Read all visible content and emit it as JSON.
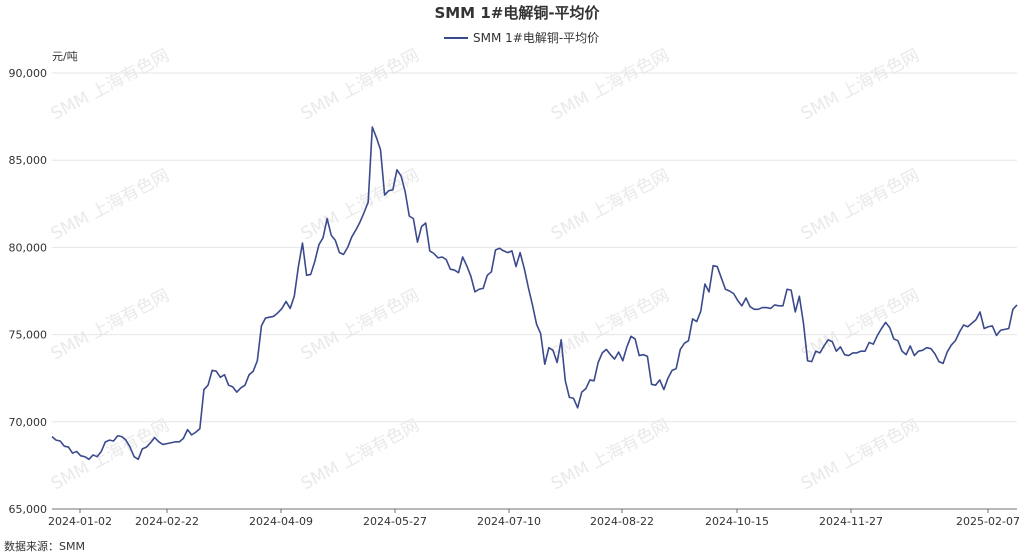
{
  "chart_data": {
    "type": "line",
    "title": "SMM 1#电解铜-平均价",
    "ylabel": "元/吨",
    "ylim": [
      65000,
      90000
    ],
    "y_ticks": [
      65000,
      70000,
      75000,
      80000,
      85000,
      90000
    ],
    "y_tick_labels": [
      "65,000",
      "70,000",
      "75,000",
      "80,000",
      "85,000",
      "90,000"
    ],
    "x_ticks": [
      "2024-01-02",
      "2024-02-22",
      "2024-04-09",
      "2024-05-27",
      "2024-07-10",
      "2024-08-22",
      "2024-10-15",
      "2024-11-27",
      "2025-02-07"
    ],
    "legend_position": "top-center",
    "grid": true,
    "watermark": "SMM 上海有色网",
    "color": "#3b4a8c",
    "series": [
      {
        "name": "SMM 1#电解铜-平均价",
        "values": [
          69150,
          68950,
          68900,
          68600,
          68550,
          68200,
          68300,
          68050,
          68000,
          67850,
          68100,
          68000,
          68300,
          68850,
          68950,
          68900,
          69200,
          69150,
          68950,
          68550,
          68000,
          67850,
          68450,
          68550,
          68800,
          69100,
          68850,
          68700,
          68750,
          68800,
          68850,
          68850,
          69050,
          69550,
          69250,
          69400,
          69600,
          71850,
          72100,
          72950,
          72900,
          72550,
          72700,
          72100,
          72000,
          71700,
          71950,
          72100,
          72700,
          72900,
          73500,
          75500,
          75950,
          76000,
          76050,
          76250,
          76500,
          76900,
          76500,
          77200,
          78900,
          80250,
          78400,
          78450,
          79200,
          80150,
          80550,
          81650,
          80700,
          80400,
          79700,
          79600,
          80000,
          80600,
          81000,
          81450,
          82000,
          82600,
          86900,
          86300,
          85600,
          83000,
          83250,
          83300,
          84450,
          84100,
          83200,
          81800,
          81650,
          80300,
          81200,
          81400,
          79800,
          79650,
          79400,
          79450,
          79300,
          78750,
          78700,
          78550,
          79450,
          78950,
          78350,
          77450,
          77600,
          77650,
          78400,
          78600,
          79850,
          79950,
          79800,
          79700,
          79800,
          78900,
          79700,
          78800,
          77700,
          76700,
          75600,
          75050,
          73300,
          74250,
          74100,
          73400,
          74700,
          72350,
          71400,
          71350,
          70800,
          71700,
          71900,
          72400,
          72350,
          73400,
          73950,
          74150,
          73850,
          73600,
          74000,
          73500,
          74300,
          74900,
          74750,
          73800,
          73850,
          73750,
          72150,
          72100,
          72400,
          71850,
          72500,
          72950,
          73050,
          74150,
          74500,
          74650,
          75900,
          75750,
          76350,
          77900,
          77450,
          78950,
          78900,
          78250,
          77600,
          77500,
          77350,
          76950,
          76650,
          77100,
          76600,
          76450,
          76450,
          76550,
          76550,
          76500,
          76700,
          76650,
          76650,
          77600,
          77550,
          76300,
          77200,
          75650,
          73500,
          73450,
          74050,
          73950,
          74350,
          74700,
          74600,
          74050,
          74300,
          73850,
          73800,
          73950,
          73950,
          74050,
          74050,
          74550,
          74450,
          74950,
          75350,
          75700,
          75400,
          74750,
          74650,
          74050,
          73850,
          74350,
          73800,
          74050,
          74100,
          74250,
          74200,
          73900,
          73450,
          73350,
          74000,
          74400,
          74650,
          75150,
          75550,
          75450,
          75650,
          75850,
          76300,
          75350,
          75450,
          75500,
          74950,
          75250,
          75300,
          75350,
          76450,
          76700
        ]
      }
    ]
  },
  "footer": {
    "source": "数据来源：SMM"
  }
}
